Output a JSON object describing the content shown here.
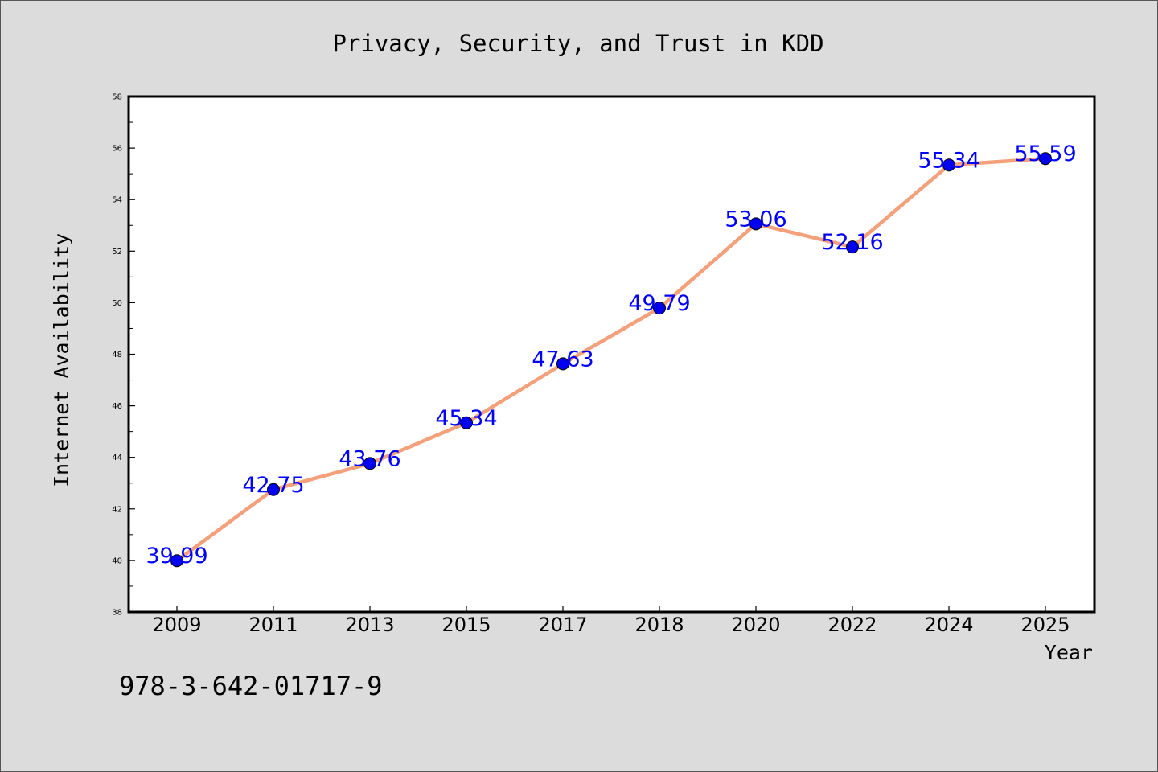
{
  "chart_data": {
    "type": "line",
    "title": "Privacy, Security, and Trust in KDD",
    "xlabel": "Year",
    "ylabel": "Internet Availability",
    "categories": [
      "2009",
      "2011",
      "2013",
      "2015",
      "2017",
      "2018",
      "2020",
      "2022",
      "2024",
      "2025"
    ],
    "series": [
      {
        "values": [
          39.99,
          42.75,
          43.76,
          45.34,
          47.63,
          49.79,
          53.06,
          52.16,
          55.34,
          55.59
        ],
        "labels": [
          "39.99",
          "42.75",
          "43.76",
          "45.34",
          "47.63",
          "49.79",
          "53.06",
          "52.16",
          "55.34",
          "55.59"
        ],
        "line_color": "#f4a07a",
        "marker_color": "#0000ee"
      }
    ],
    "ylim": [
      38,
      58
    ],
    "yticks": [
      "38",
      "40",
      "42",
      "44",
      "46",
      "48",
      "50",
      "52",
      "54",
      "56",
      "58"
    ],
    "grid": false,
    "legend": "none"
  },
  "footer_text": "978-3-642-01717-9",
  "colors": {
    "background": "#dcdcdc",
    "plot_area": "#ffffff",
    "label_color": "#0000ff"
  }
}
